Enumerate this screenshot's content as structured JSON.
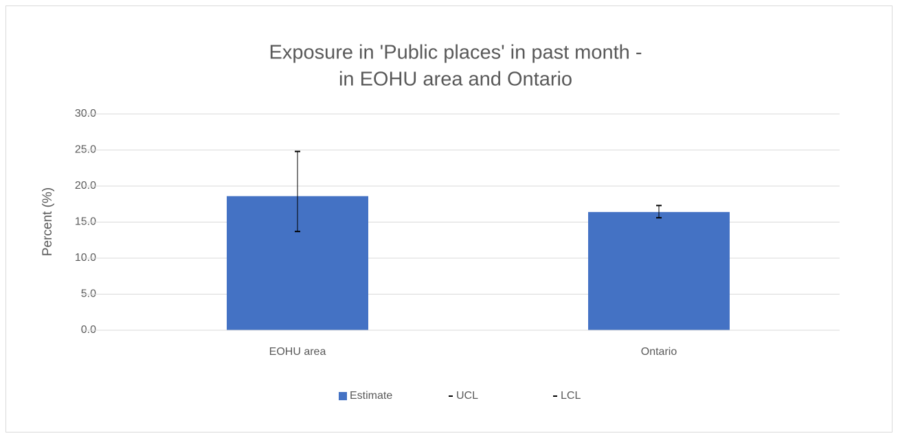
{
  "chart_data": {
    "type": "bar",
    "title": [
      "Exposure in 'Public places' in past month -",
      "in EOHU area and Ontario"
    ],
    "y_label": "Percent (%)",
    "categories": [
      "EOHU area",
      "Ontario"
    ],
    "series": [
      {
        "name": "Estimate",
        "color": "#4472c4",
        "values": [
          18.6,
          16.4
        ]
      },
      {
        "name": "UCL",
        "color": "#000000",
        "values": [
          24.8,
          17.3
        ]
      },
      {
        "name": "LCL",
        "color": "#000000",
        "values": [
          13.7,
          15.6
        ]
      }
    ],
    "ylim": [
      0,
      30
    ],
    "yticks": [
      {
        "value": 0,
        "label": "0.0"
      },
      {
        "value": 5,
        "label": "5.0"
      },
      {
        "value": 10,
        "label": "10.0"
      },
      {
        "value": 15,
        "label": "15.0"
      },
      {
        "value": 20,
        "label": "20.0"
      },
      {
        "value": 25,
        "label": "25.0"
      },
      {
        "value": 30,
        "label": "30.0"
      }
    ],
    "grid": true,
    "legend": "bottom"
  }
}
